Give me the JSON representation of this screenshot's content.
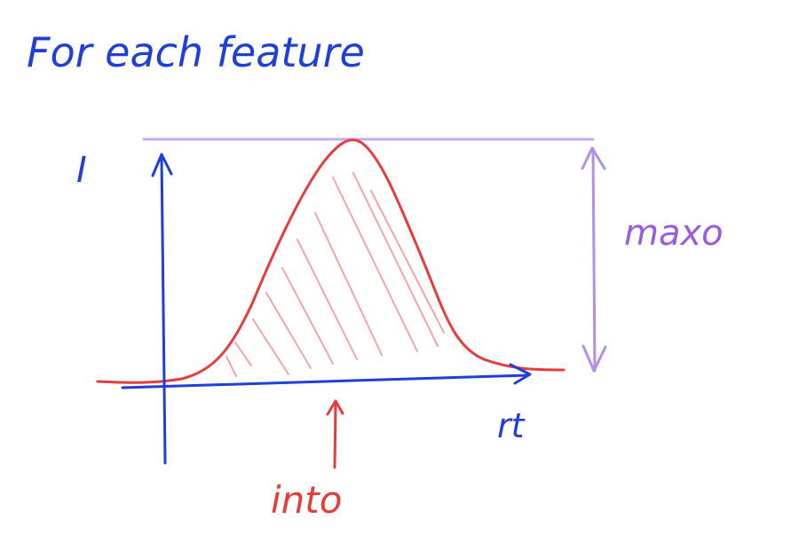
{
  "title": "For each feature",
  "labels": {
    "y_axis": "I",
    "x_axis": "rt",
    "area": "into",
    "height": "maxo"
  },
  "colors": {
    "blue": "#1f3fd8",
    "red": "#e63c3c",
    "hatch": "#f2a6a6",
    "purple": "#b48ee8",
    "purple_text": "#9a5be0"
  }
}
